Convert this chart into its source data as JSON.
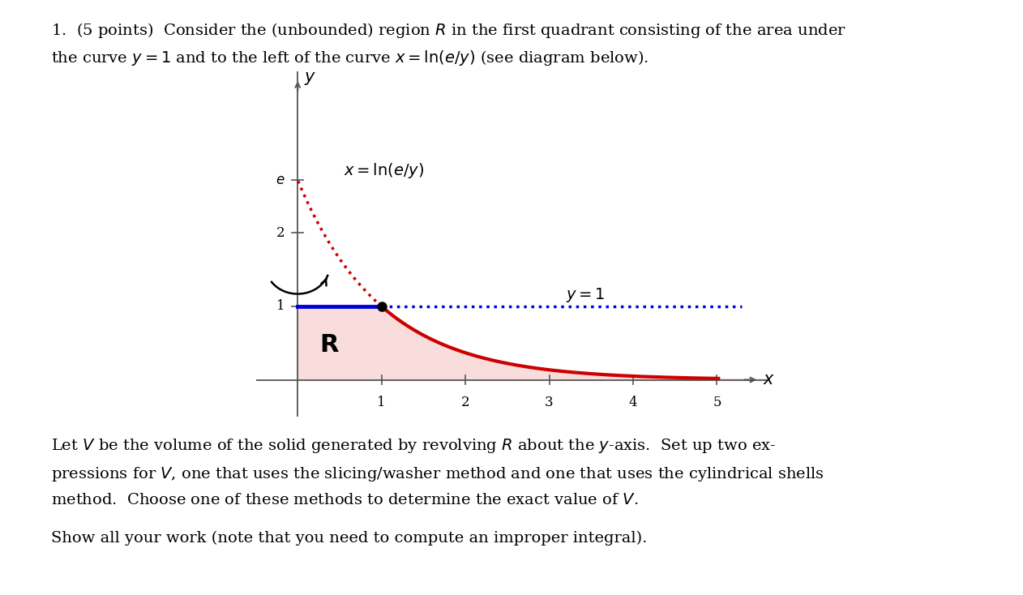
{
  "fig_width": 12.62,
  "fig_height": 7.34,
  "bg_color": "#ffffff",
  "title_text_line1": "1.  (5 points)  Consider the (unbounded) region $R$ in the first quadrant consisting of the area under",
  "title_text_line2": "the curve $y = 1$ and to the left of the curve $x = \\ln(e/y)$ (see diagram below).",
  "bottom_text1": "Let $V$ be the volume of the solid generated by revolving $R$ about the $y$-axis.  Set up two ex-",
  "bottom_text2": "pressions for $V$, one that uses the slicing/washer method and one that uses the cylindrical shells",
  "bottom_text3": "method.  Choose one of these methods to determine the exact value of $V$.",
  "bottom_text4": "Show all your work (note that you need to compute an improper integral).",
  "curve_color": "#cc0000",
  "fill_color": "#f5c5c5",
  "fill_alpha": 0.6,
  "y1_line_color": "#0000dd",
  "y1_dotted_color": "#0000dd",
  "red_dotted_color": "#cc0000",
  "dot_color": "#000000",
  "axis_color": "#555555",
  "label_fontsize": 13,
  "tick_fontsize": 12,
  "text_fontsize": 14,
  "annotation_fontsize": 13,
  "xlabel": "$x$",
  "ylabel": "$y$",
  "xlim": [
    -0.5,
    5.6
  ],
  "ylim": [
    -0.5,
    4.2
  ],
  "e_val": 2.718281828459045,
  "x_ticks": [
    1,
    2,
    3,
    4,
    5
  ],
  "y_ticks": [
    1,
    2
  ],
  "e_tick_label": "$e$",
  "curve_label": "$x = \\ln(e/y)$",
  "y1_label": "$y = 1$",
  "R_label": "$\\mathbf{R}$"
}
